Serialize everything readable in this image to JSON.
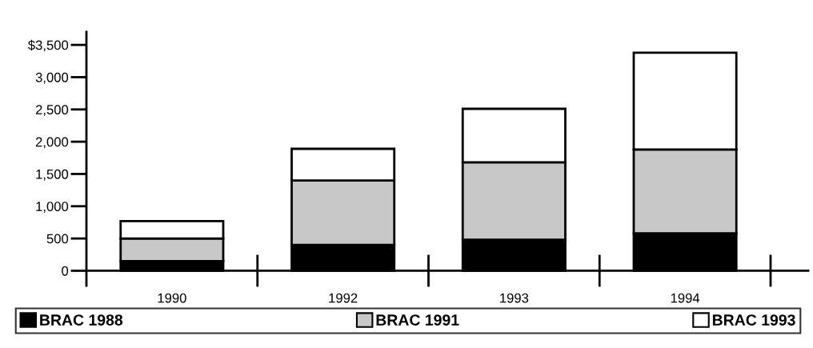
{
  "chart_data": {
    "type": "bar",
    "stacked": true,
    "categories": [
      "1990",
      "1992",
      "1993",
      "1994"
    ],
    "series": [
      {
        "name": "BRAC 1988",
        "color": "#000000",
        "values": [
          150,
          400,
          480,
          580
        ]
      },
      {
        "name": "BRAC 1991",
        "color": "#c8c8c8",
        "values": [
          350,
          1000,
          1200,
          1300
        ]
      },
      {
        "name": "BRAC 1993",
        "color": "#ffffff",
        "values": [
          270,
          490,
          830,
          1500
        ]
      }
    ],
    "ylim": [
      -230,
      3700
    ],
    "yticks": [
      0,
      {
        "value": 500,
        "label": "500"
      },
      {
        "value": 1000,
        "label": "1,000"
      },
      {
        "value": 1500,
        "label": "1,500"
      },
      {
        "value": 2000,
        "label": "2,000"
      },
      {
        "value": 2500,
        "label": "2,500"
      },
      {
        "value": 3000,
        "label": "3,000"
      },
      {
        "value": 3500,
        "label": "$3,500"
      }
    ],
    "grid": false,
    "legend": "bottom"
  }
}
